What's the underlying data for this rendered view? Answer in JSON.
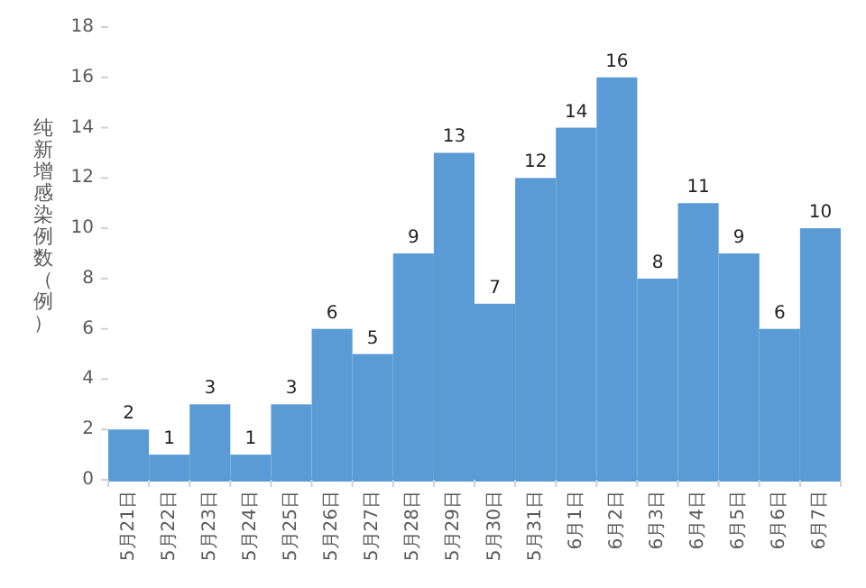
{
  "chart_data": {
    "type": "bar",
    "ylabel": "纯新增感染例数（例）",
    "categories": [
      "5月21日",
      "5月22日",
      "5月23日",
      "5月24日",
      "5月25日",
      "5月26日",
      "5月27日",
      "5月28日",
      "5月29日",
      "5月30日",
      "5月31日",
      "6月1日",
      "6月2日",
      "6月3日",
      "6月4日",
      "6月5日",
      "6月6日",
      "6月7日"
    ],
    "values": [
      2,
      1,
      3,
      1,
      3,
      6,
      5,
      9,
      13,
      7,
      12,
      14,
      16,
      8,
      11,
      9,
      6,
      10
    ],
    "color": "#5b9bd5",
    "data_labels": true,
    "ylim": [
      0,
      18
    ],
    "yticks": [
      0,
      2,
      4,
      6,
      8,
      10,
      12,
      14,
      16,
      18
    ]
  }
}
